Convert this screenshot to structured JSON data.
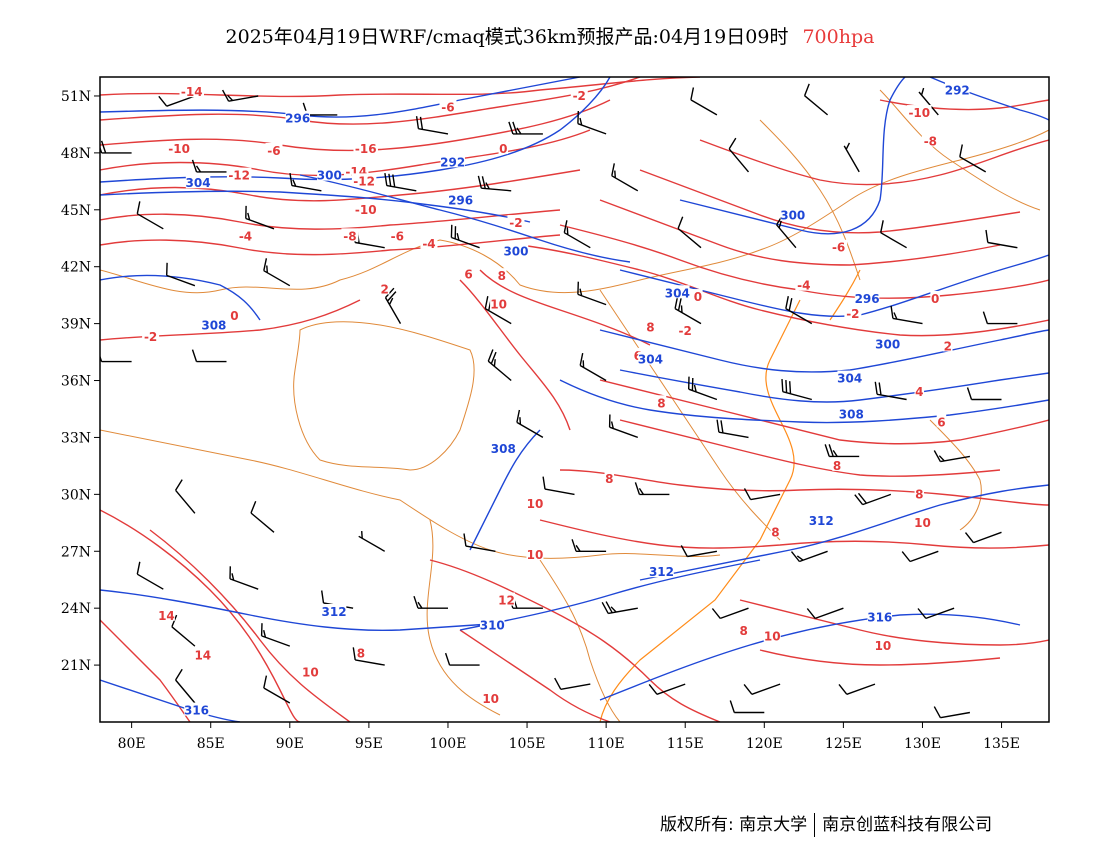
{
  "title": {
    "main": "2025年04月19日WRF/cmaq模式36km预报产品:04月19日09时",
    "level": "700hpa"
  },
  "axes": {
    "x_ticks": [
      "80E",
      "85E",
      "90E",
      "95E",
      "100E",
      "105E",
      "110E",
      "115E",
      "120E",
      "125E",
      "130E",
      "135E"
    ],
    "y_ticks": [
      "51N",
      "48N",
      "45N",
      "42N",
      "39N",
      "36N",
      "33N",
      "30N",
      "27N",
      "24N",
      "21N"
    ]
  },
  "colors": {
    "temperature": "#e23b3b",
    "geopotential": "#1f47d6",
    "border": "#e08a3a",
    "coast": "#ff8c1a",
    "wind": "#000000"
  },
  "chart_data": {
    "type": "contour-map",
    "lon_range": [
      78,
      138
    ],
    "lat_range": [
      18,
      52
    ],
    "temperature_labels": [
      {
        "text": "-14",
        "lon": 83.8,
        "lat": 51.2
      },
      {
        "text": "-10",
        "lon": 83.0,
        "lat": 48.2
      },
      {
        "text": "-6",
        "lon": 89.0,
        "lat": 48.1
      },
      {
        "text": "-12",
        "lon": 86.8,
        "lat": 46.8
      },
      {
        "text": "-16",
        "lon": 94.8,
        "lat": 48.2
      },
      {
        "text": "-14",
        "lon": 94.2,
        "lat": 47.0
      },
      {
        "text": "-12",
        "lon": 94.7,
        "lat": 46.5
      },
      {
        "text": "-10",
        "lon": 94.8,
        "lat": 45.0
      },
      {
        "text": "-8",
        "lon": 93.8,
        "lat": 43.6
      },
      {
        "text": "-6",
        "lon": 96.8,
        "lat": 43.6
      },
      {
        "text": "-4",
        "lon": 98.8,
        "lat": 43.2
      },
      {
        "text": "-4",
        "lon": 87.2,
        "lat": 43.6
      },
      {
        "text": "-6",
        "lon": 100.0,
        "lat": 50.4
      },
      {
        "text": "0",
        "lon": 103.5,
        "lat": 48.2
      },
      {
        "text": "-2",
        "lon": 108.3,
        "lat": 51.0
      },
      {
        "text": "-2",
        "lon": 104.3,
        "lat": 44.3
      },
      {
        "text": "2",
        "lon": 96.0,
        "lat": 40.8
      },
      {
        "text": "0",
        "lon": 86.5,
        "lat": 39.4
      },
      {
        "text": "-2",
        "lon": 81.2,
        "lat": 38.3
      },
      {
        "text": "6",
        "lon": 101.3,
        "lat": 41.6
      },
      {
        "text": "8",
        "lon": 103.4,
        "lat": 41.5
      },
      {
        "text": "10",
        "lon": 103.2,
        "lat": 40.0
      },
      {
        "text": "8",
        "lon": 112.8,
        "lat": 38.8
      },
      {
        "text": "8",
        "lon": 113.5,
        "lat": 34.8
      },
      {
        "text": "10",
        "lon": 105.5,
        "lat": 29.5
      },
      {
        "text": "8",
        "lon": 110.2,
        "lat": 30.8
      },
      {
        "text": "10",
        "lon": 105.5,
        "lat": 26.8
      },
      {
        "text": "12",
        "lon": 103.7,
        "lat": 24.4
      },
      {
        "text": "10",
        "lon": 102.7,
        "lat": 19.2
      },
      {
        "text": "14",
        "lon": 82.2,
        "lat": 23.6
      },
      {
        "text": "14",
        "lon": 84.5,
        "lat": 21.5
      },
      {
        "text": "10",
        "lon": 91.3,
        "lat": 20.6
      },
      {
        "text": "8",
        "lon": 94.5,
        "lat": 21.6
      },
      {
        "text": "8",
        "lon": 120.7,
        "lat": 28.0
      },
      {
        "text": "10",
        "lon": 120.5,
        "lat": 22.5
      },
      {
        "text": "8",
        "lon": 118.7,
        "lat": 22.8
      },
      {
        "text": "10",
        "lon": 127.5,
        "lat": 22.0
      },
      {
        "text": "8",
        "lon": 124.6,
        "lat": 31.5
      },
      {
        "text": "8",
        "lon": 129.8,
        "lat": 30.0
      },
      {
        "text": "10",
        "lon": 130.0,
        "lat": 28.5
      },
      {
        "text": "6",
        "lon": 131.2,
        "lat": 33.8
      },
      {
        "text": "4",
        "lon": 129.8,
        "lat": 35.4
      },
      {
        "text": "2",
        "lon": 131.6,
        "lat": 37.8
      },
      {
        "text": "0",
        "lon": 130.8,
        "lat": 40.3
      },
      {
        "text": "-2",
        "lon": 125.6,
        "lat": 39.5
      },
      {
        "text": "-4",
        "lon": 122.5,
        "lat": 41.0
      },
      {
        "text": "-6",
        "lon": 124.7,
        "lat": 43.0
      },
      {
        "text": "-8",
        "lon": 130.5,
        "lat": 48.6
      },
      {
        "text": "-10",
        "lon": 129.8,
        "lat": 50.1
      },
      {
        "text": "-2",
        "lon": 115.0,
        "lat": 38.6
      },
      {
        "text": "0",
        "lon": 115.8,
        "lat": 40.4
      },
      {
        "text": "6",
        "lon": 112.0,
        "lat": 37.3
      }
    ],
    "height_labels": [
      {
        "text": "296",
        "lon": 90.5,
        "lat": 49.8
      },
      {
        "text": "304",
        "lon": 84.2,
        "lat": 46.4
      },
      {
        "text": "300",
        "lon": 92.5,
        "lat": 46.8
      },
      {
        "text": "292",
        "lon": 100.3,
        "lat": 47.5
      },
      {
        "text": "296",
        "lon": 100.8,
        "lat": 45.5
      },
      {
        "text": "300",
        "lon": 104.3,
        "lat": 42.8
      },
      {
        "text": "308",
        "lon": 85.2,
        "lat": 38.9
      },
      {
        "text": "292",
        "lon": 132.2,
        "lat": 51.3
      },
      {
        "text": "300",
        "lon": 121.8,
        "lat": 44.7
      },
      {
        "text": "304",
        "lon": 114.5,
        "lat": 40.6
      },
      {
        "text": "296",
        "lon": 126.5,
        "lat": 40.3
      },
      {
        "text": "300",
        "lon": 127.8,
        "lat": 37.9
      },
      {
        "text": "304",
        "lon": 112.8,
        "lat": 37.1
      },
      {
        "text": "304",
        "lon": 125.4,
        "lat": 36.1
      },
      {
        "text": "308",
        "lon": 125.5,
        "lat": 34.2
      },
      {
        "text": "308",
        "lon": 103.5,
        "lat": 32.4
      },
      {
        "text": "312",
        "lon": 113.5,
        "lat": 25.9
      },
      {
        "text": "312",
        "lon": 123.6,
        "lat": 28.6
      },
      {
        "text": "316",
        "lon": 127.3,
        "lat": 23.5
      },
      {
        "text": "312",
        "lon": 92.8,
        "lat": 23.8
      },
      {
        "text": "310",
        "lon": 102.8,
        "lat": 23.1
      },
      {
        "text": "316",
        "lon": 84.1,
        "lat": 18.6
      }
    ],
    "winds": [
      {
        "lon": 84,
        "lat": 51,
        "dir": 250,
        "spd": 10
      },
      {
        "lon": 88,
        "lat": 51,
        "dir": 260,
        "spd": 15
      },
      {
        "lon": 93,
        "lat": 50,
        "dir": 270,
        "spd": 10
      },
      {
        "lon": 100,
        "lat": 49,
        "dir": 280,
        "spd": 20
      },
      {
        "lon": 106,
        "lat": 49,
        "dir": 270,
        "spd": 25
      },
      {
        "lon": 110,
        "lat": 49,
        "dir": 290,
        "spd": 15
      },
      {
        "lon": 117,
        "lat": 50,
        "dir": 300,
        "spd": 10
      },
      {
        "lon": 124,
        "lat": 50,
        "dir": 310,
        "spd": 10
      },
      {
        "lon": 131,
        "lat": 50,
        "dir": 320,
        "spd": 5
      },
      {
        "lon": 80,
        "lat": 48,
        "dir": 270,
        "spd": 20
      },
      {
        "lon": 86,
        "lat": 47,
        "dir": 270,
        "spd": 15
      },
      {
        "lon": 92,
        "lat": 46,
        "dir": 280,
        "spd": 15
      },
      {
        "lon": 98,
        "lat": 46,
        "dir": 280,
        "spd": 30
      },
      {
        "lon": 104,
        "lat": 46,
        "dir": 275,
        "spd": 25
      },
      {
        "lon": 112,
        "lat": 46,
        "dir": 300,
        "spd": 15
      },
      {
        "lon": 119,
        "lat": 47,
        "dir": 320,
        "spd": 10
      },
      {
        "lon": 126,
        "lat": 47,
        "dir": 330,
        "spd": 5
      },
      {
        "lon": 134,
        "lat": 47,
        "dir": 300,
        "spd": 10
      },
      {
        "lon": 82,
        "lat": 44,
        "dir": 300,
        "spd": 10
      },
      {
        "lon": 89,
        "lat": 44,
        "dir": 290,
        "spd": 15
      },
      {
        "lon": 96,
        "lat": 43,
        "dir": 280,
        "spd": 20
      },
      {
        "lon": 102,
        "lat": 43,
        "dir": 290,
        "spd": 25
      },
      {
        "lon": 109,
        "lat": 43,
        "dir": 300,
        "spd": 15
      },
      {
        "lon": 116,
        "lat": 43,
        "dir": 310,
        "spd": 10
      },
      {
        "lon": 122,
        "lat": 43,
        "dir": 320,
        "spd": 15
      },
      {
        "lon": 129,
        "lat": 43,
        "dir": 300,
        "spd": 10
      },
      {
        "lon": 136,
        "lat": 43,
        "dir": 280,
        "spd": 10
      },
      {
        "lon": 84,
        "lat": 41,
        "dir": 290,
        "spd": 10
      },
      {
        "lon": 90,
        "lat": 41,
        "dir": 300,
        "spd": 15
      },
      {
        "lon": 97,
        "lat": 39,
        "dir": 330,
        "spd": 25
      },
      {
        "lon": 104,
        "lat": 39,
        "dir": 300,
        "spd": 20
      },
      {
        "lon": 110,
        "lat": 40,
        "dir": 290,
        "spd": 15
      },
      {
        "lon": 116,
        "lat": 39,
        "dir": 300,
        "spd": 25
      },
      {
        "lon": 123,
        "lat": 39,
        "dir": 300,
        "spd": 20
      },
      {
        "lon": 130,
        "lat": 39,
        "dir": 280,
        "spd": 15
      },
      {
        "lon": 136,
        "lat": 39,
        "dir": 270,
        "spd": 10
      },
      {
        "lon": 80,
        "lat": 37,
        "dir": 270,
        "spd": 10
      },
      {
        "lon": 86,
        "lat": 37,
        "dir": 270,
        "spd": 10
      },
      {
        "lon": 104,
        "lat": 36,
        "dir": 310,
        "spd": 25
      },
      {
        "lon": 110,
        "lat": 36,
        "dir": 300,
        "spd": 15
      },
      {
        "lon": 117,
        "lat": 35,
        "dir": 290,
        "spd": 25
      },
      {
        "lon": 123,
        "lat": 35,
        "dir": 285,
        "spd": 30
      },
      {
        "lon": 129,
        "lat": 35,
        "dir": 280,
        "spd": 20
      },
      {
        "lon": 135,
        "lat": 35,
        "dir": 270,
        "spd": 10
      },
      {
        "lon": 106,
        "lat": 33,
        "dir": 300,
        "spd": 15
      },
      {
        "lon": 112,
        "lat": 33,
        "dir": 290,
        "spd": 15
      },
      {
        "lon": 119,
        "lat": 33,
        "dir": 280,
        "spd": 20
      },
      {
        "lon": 126,
        "lat": 32,
        "dir": 270,
        "spd": 25
      },
      {
        "lon": 133,
        "lat": 32,
        "dir": 260,
        "spd": 15
      },
      {
        "lon": 108,
        "lat": 30,
        "dir": 280,
        "spd": 10
      },
      {
        "lon": 114,
        "lat": 30,
        "dir": 270,
        "spd": 15
      },
      {
        "lon": 121,
        "lat": 30,
        "dir": 260,
        "spd": 10
      },
      {
        "lon": 128,
        "lat": 30,
        "dir": 250,
        "spd": 20
      },
      {
        "lon": 135,
        "lat": 28,
        "dir": 250,
        "spd": 10
      },
      {
        "lon": 84,
        "lat": 29,
        "dir": 320,
        "spd": 10
      },
      {
        "lon": 89,
        "lat": 28,
        "dir": 310,
        "spd": 10
      },
      {
        "lon": 96,
        "lat": 27,
        "dir": 300,
        "spd": 5
      },
      {
        "lon": 103,
        "lat": 27,
        "dir": 280,
        "spd": 10
      },
      {
        "lon": 110,
        "lat": 27,
        "dir": 270,
        "spd": 15
      },
      {
        "lon": 117,
        "lat": 27,
        "dir": 260,
        "spd": 10
      },
      {
        "lon": 124,
        "lat": 27,
        "dir": 250,
        "spd": 15
      },
      {
        "lon": 131,
        "lat": 27,
        "dir": 250,
        "spd": 10
      },
      {
        "lon": 82,
        "lat": 25,
        "dir": 300,
        "spd": 10
      },
      {
        "lon": 88,
        "lat": 25,
        "dir": 290,
        "spd": 15
      },
      {
        "lon": 94,
        "lat": 24,
        "dir": 280,
        "spd": 10
      },
      {
        "lon": 100,
        "lat": 24,
        "dir": 270,
        "spd": 15
      },
      {
        "lon": 106,
        "lat": 24,
        "dir": 270,
        "spd": 20
      },
      {
        "lon": 112,
        "lat": 24,
        "dir": 260,
        "spd": 25
      },
      {
        "lon": 119,
        "lat": 24,
        "dir": 250,
        "spd": 10
      },
      {
        "lon": 125,
        "lat": 24,
        "dir": 250,
        "spd": 10
      },
      {
        "lon": 132,
        "lat": 24,
        "dir": 250,
        "spd": 10
      },
      {
        "lon": 84,
        "lat": 22,
        "dir": 310,
        "spd": 10
      },
      {
        "lon": 90,
        "lat": 22,
        "dir": 290,
        "spd": 15
      },
      {
        "lon": 96,
        "lat": 21,
        "dir": 280,
        "spd": 10
      },
      {
        "lon": 102,
        "lat": 21,
        "dir": 270,
        "spd": 10
      },
      {
        "lon": 109,
        "lat": 20,
        "dir": 260,
        "spd": 10
      },
      {
        "lon": 115,
        "lat": 20,
        "dir": 250,
        "spd": 10
      },
      {
        "lon": 121,
        "lat": 20,
        "dir": 250,
        "spd": 10
      },
      {
        "lon": 127,
        "lat": 20,
        "dir": 250,
        "spd": 10
      },
      {
        "lon": 84,
        "lat": 19,
        "dir": 320,
        "spd": 10
      },
      {
        "lon": 90,
        "lat": 19,
        "dir": 300,
        "spd": 10
      },
      {
        "lon": 120,
        "lat": 18.5,
        "dir": 270,
        "spd": 10
      },
      {
        "lon": 133,
        "lat": 18.5,
        "dir": 260,
        "spd": 10
      }
    ]
  },
  "footer": {
    "copyright": "版权所有: 南京大学",
    "company": "南京创蓝科技有限公司"
  }
}
